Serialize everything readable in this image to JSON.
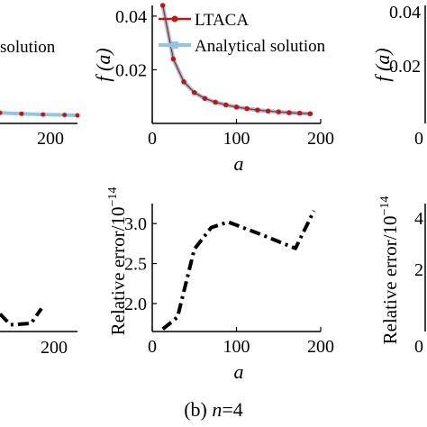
{
  "chart_data": [
    {
      "id": "partial-left-top",
      "type": "line",
      "legend": [
        "solution"
      ],
      "x_ticks": [
        "200"
      ],
      "series": [
        {
          "values": [
            [
              100,
              0.0045
            ],
            [
              125,
              0.0041
            ],
            [
              150,
              0.0038
            ],
            [
              175,
              0.0036
            ],
            [
              190,
              0.0034
            ]
          ]
        }
      ]
    },
    {
      "id": "top-middle",
      "type": "line",
      "xlabel": "a",
      "ylabel": "f (a)",
      "xlim": [
        0,
        200
      ],
      "ylim": [
        0,
        0.044
      ],
      "x_ticks": [
        "0",
        "100",
        "200"
      ],
      "y_ticks": [
        "0.04",
        "0.02"
      ],
      "legend_position": "top-right",
      "series": [
        {
          "name": "LTACA",
          "color": "#cc1111",
          "style": "solid-with-dot-markers",
          "x": [
            12.5,
            25,
            37.5,
            50,
            62.5,
            75,
            87.5,
            100,
            112.5,
            125,
            137.5,
            150,
            162.5,
            175,
            187.5
          ],
          "values": [
            0.044,
            0.024,
            0.0155,
            0.0115,
            0.0093,
            0.0079,
            0.0069,
            0.0061,
            0.0055,
            0.005,
            0.0046,
            0.0043,
            0.004,
            0.0038,
            0.0036
          ]
        },
        {
          "name": "Analytical solution",
          "color": "#8ec7e3",
          "style": "thick-solid",
          "x": [
            12.5,
            25,
            37.5,
            50,
            62.5,
            75,
            87.5,
            100,
            112.5,
            125,
            137.5,
            150,
            162.5,
            175,
            187.5
          ],
          "values": [
            0.044,
            0.024,
            0.0155,
            0.0115,
            0.0093,
            0.0079,
            0.0069,
            0.0061,
            0.0055,
            0.005,
            0.0046,
            0.0043,
            0.004,
            0.0038,
            0.0036
          ]
        }
      ]
    },
    {
      "id": "partial-right-top",
      "type": "line",
      "ylabel": "f (a)",
      "x_ticks": [
        "0"
      ],
      "y_ticks": [
        "0.04",
        "0.02"
      ]
    },
    {
      "id": "partial-left-bottom",
      "type": "line",
      "x_ticks": [
        "200"
      ],
      "series": [
        {
          "style": "dash-dot",
          "values": [
            [
              0,
              1.76
            ],
            [
              25,
              1.6
            ],
            [
              75,
              1.62
            ],
            [
              100,
              1.84
            ]
          ]
        }
      ]
    },
    {
      "id": "bottom-middle",
      "type": "line",
      "xlabel": "a",
      "ylabel": "Relative error/10",
      "ylabel_exponent": "−14",
      "xlim": [
        0,
        200
      ],
      "ylim": [
        1.65,
        3.25
      ],
      "x_ticks": [
        "0",
        "100",
        "200"
      ],
      "y_ticks": [
        "3.0",
        "2.5",
        "2.0"
      ],
      "caption": "(b) n=4",
      "series": [
        {
          "style": "dash-dot",
          "color": "#000000",
          "x": [
            12.5,
            30,
            50,
            70,
            90,
            130,
            170,
            192
          ],
          "values": [
            1.68,
            1.83,
            2.68,
            2.95,
            3.02,
            2.86,
            2.69,
            3.16
          ]
        }
      ]
    },
    {
      "id": "partial-right-bottom",
      "type": "line",
      "ylabel": "Relative error/10",
      "ylabel_exponent": "−14",
      "x_ticks": [
        "0"
      ],
      "y_ticks": [
        "4",
        "2"
      ]
    }
  ],
  "legend_labels": [
    "LTACA",
    "Analytical solution"
  ],
  "caption": {
    "prefix": "(b) ",
    "var": "n",
    "suffix": "=4"
  }
}
